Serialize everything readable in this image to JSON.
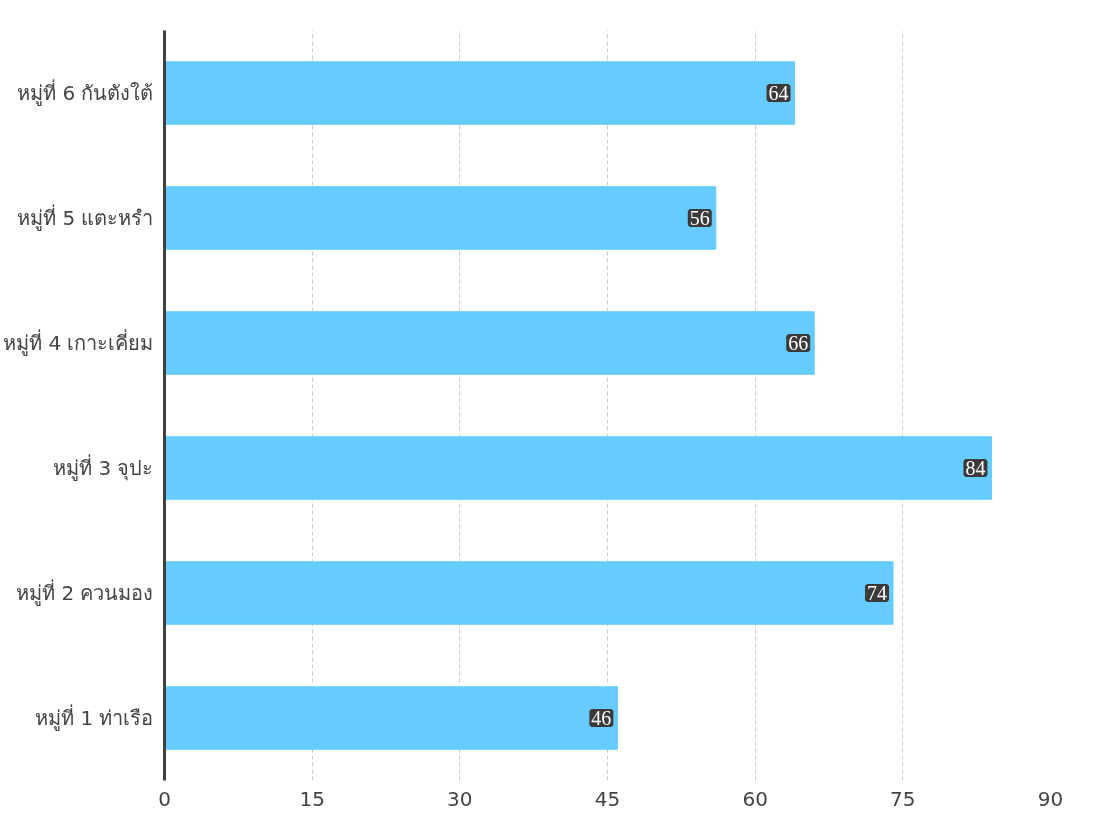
{
  "chart_data": {
    "type": "bar",
    "orientation": "horizontal",
    "categories": [
      "หมู่ที่ 6 กันตังใต้",
      "หมู่ที่ 5 แตะหรำ",
      "หมู่ที่ 4 เกาะเคี่ยม",
      "หมู่ที่ 3 จุปะ",
      "หมู่ที่ 2 ควนมอง",
      "หมู่ที่ 1 ท่าเรือ"
    ],
    "values": [
      64,
      56,
      66,
      84,
      74,
      46
    ],
    "color": "#66ccff",
    "xlim": [
      0,
      90
    ],
    "xticks": [
      0,
      15,
      30,
      45,
      60,
      75,
      90
    ],
    "grid": "x",
    "data_labels": true
  }
}
